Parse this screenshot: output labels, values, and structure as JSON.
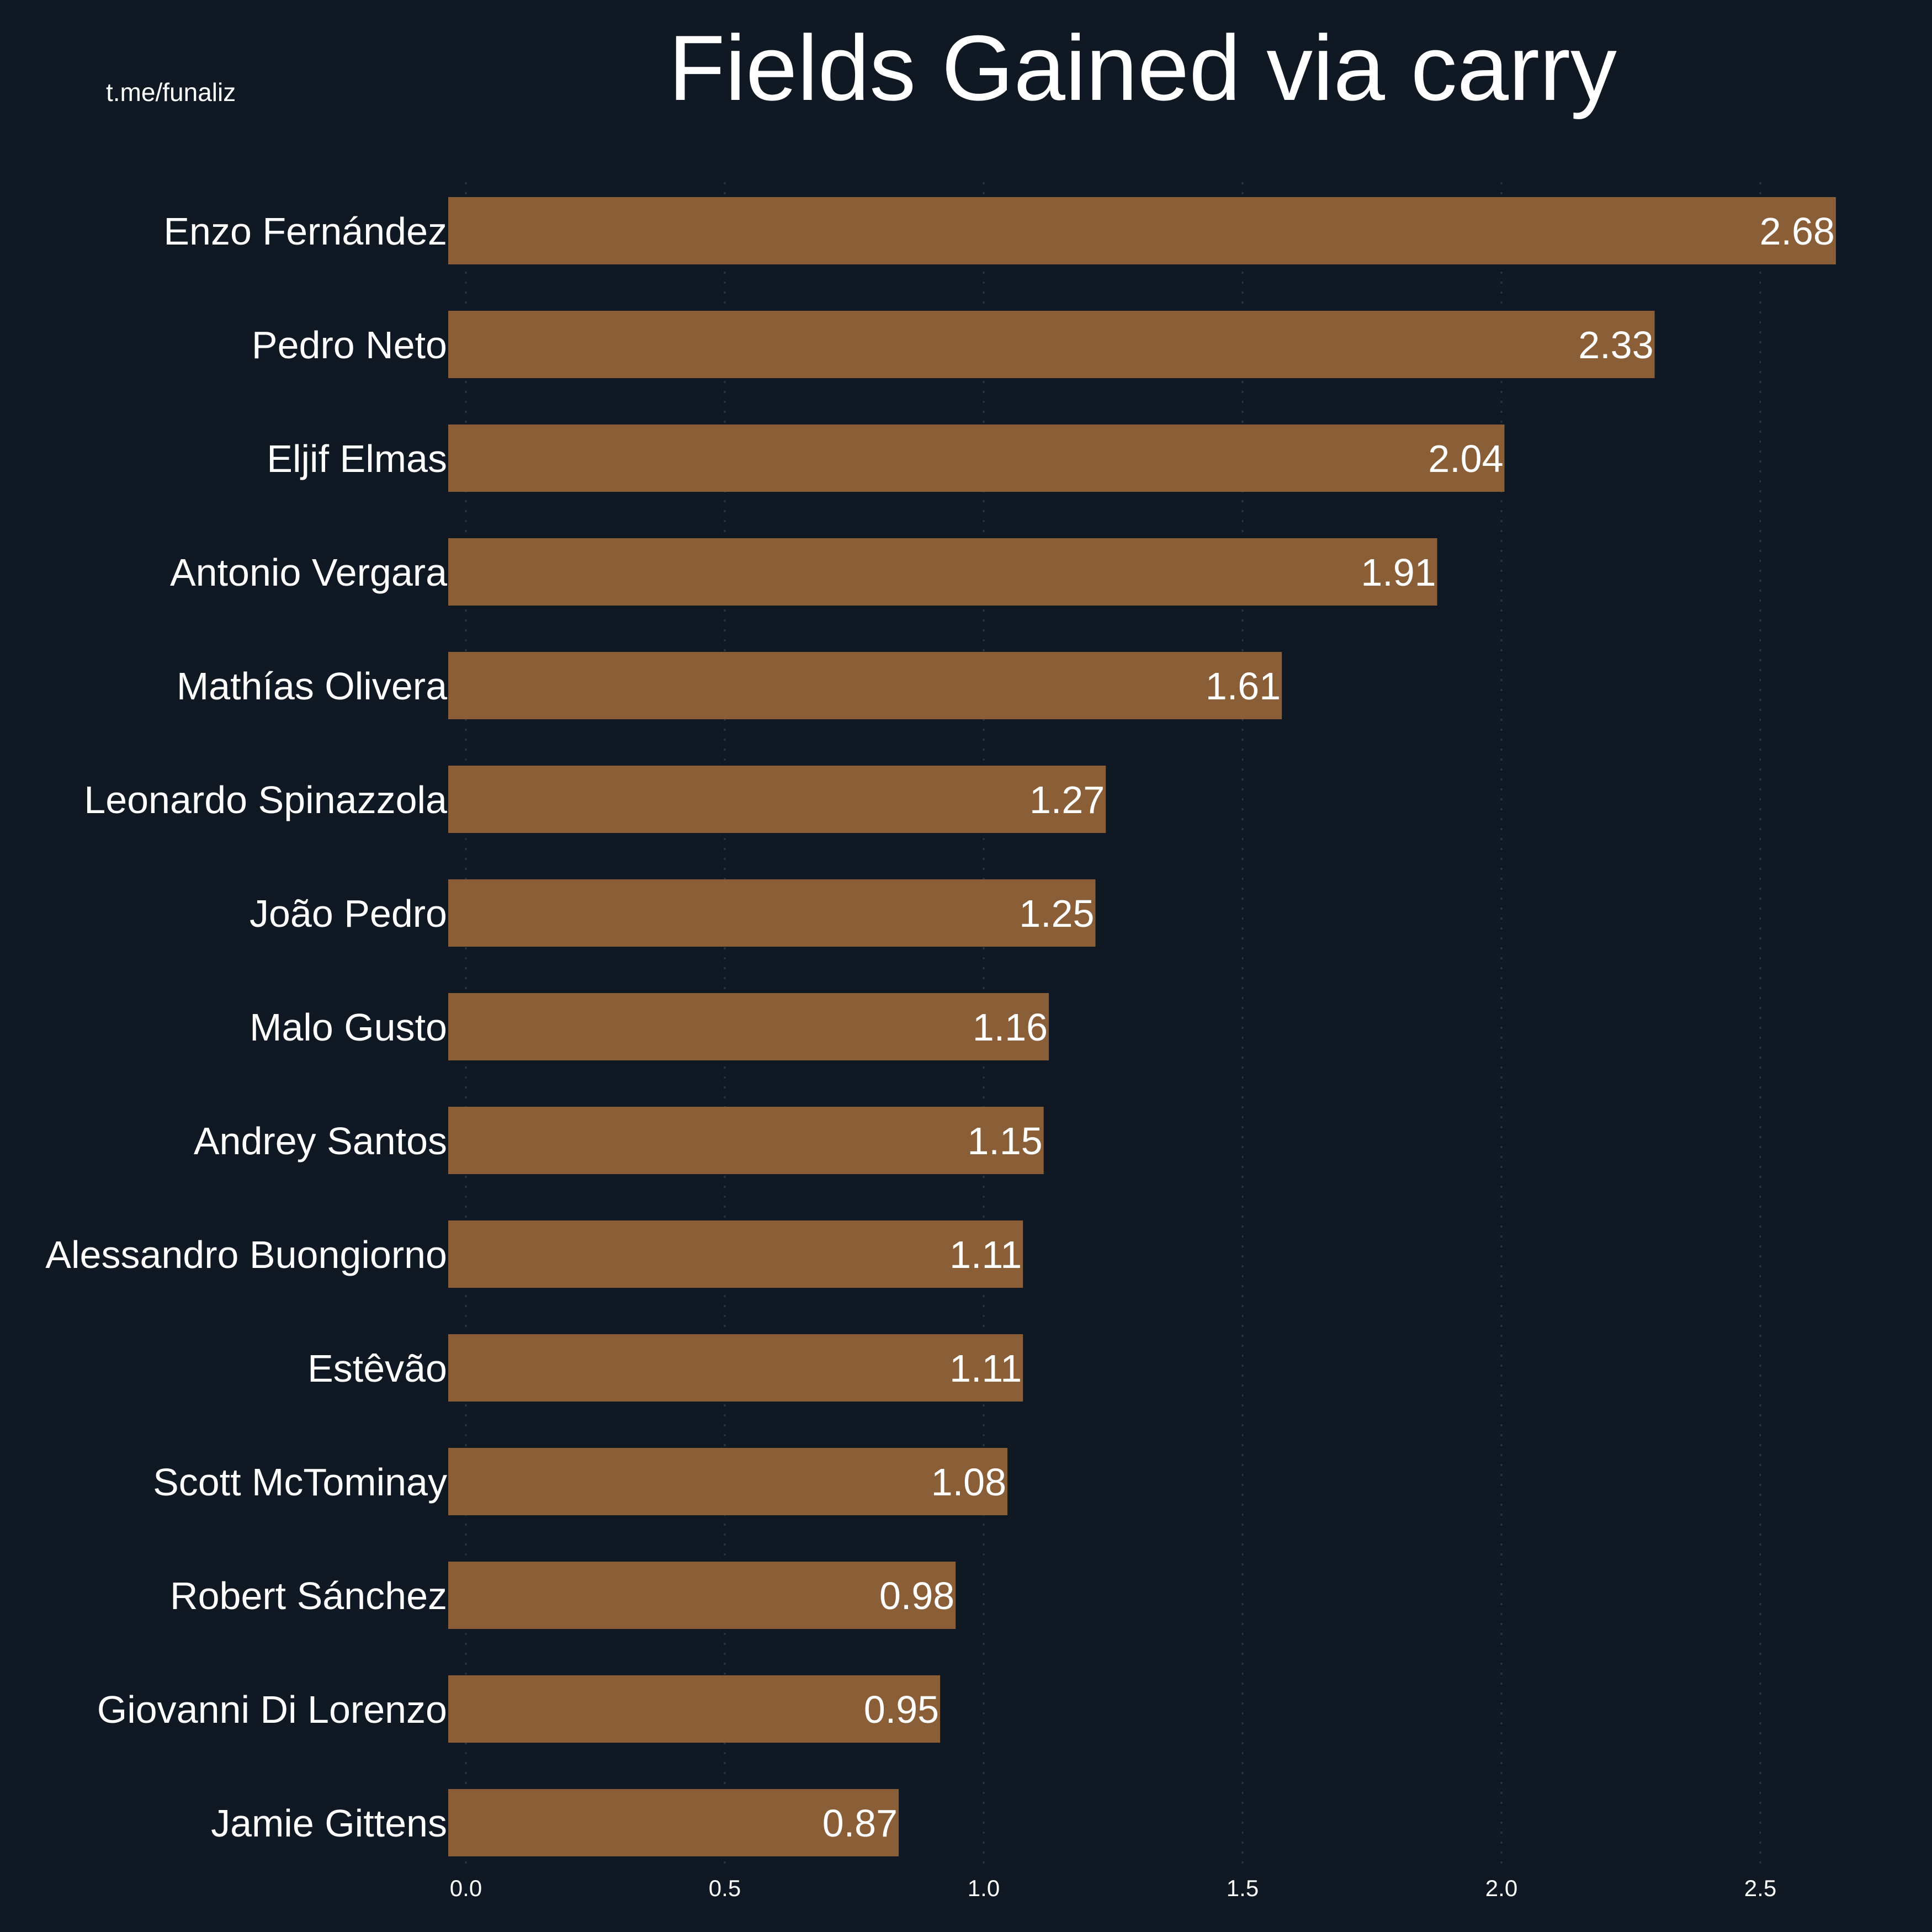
{
  "watermark": "t.me/funaliz",
  "chart_data": {
    "type": "bar",
    "orientation": "horizontal",
    "title": "Fields Gained via carry",
    "xlabel": "",
    "ylabel": "",
    "xlim": [
      0,
      2.8
    ],
    "grid": true,
    "bar_color": "#8a5f38",
    "background_color": "#101923",
    "xticks": [
      "0.0",
      "0.5",
      "1.0",
      "1.5",
      "2.0",
      "2.5"
    ],
    "xtick_values": [
      0,
      0.5,
      1.0,
      1.5,
      2.0,
      2.5
    ],
    "categories": [
      "Enzo Fernández",
      "Pedro Neto",
      "Eljif Elmas",
      "Antonio Vergara",
      "Mathías Olivera",
      "Leonardo Spinazzola",
      "João Pedro",
      "Malo Gusto",
      "Andrey Santos",
      "Alessandro Buongiorno",
      "Estêvão",
      "Scott McTominay",
      "Robert Sánchez",
      "Giovanni Di Lorenzo",
      "Jamie Gittens"
    ],
    "values": [
      2.68,
      2.33,
      2.04,
      1.91,
      1.61,
      1.27,
      1.25,
      1.16,
      1.15,
      1.11,
      1.11,
      1.08,
      0.98,
      0.95,
      0.87
    ],
    "value_labels": [
      "2.68",
      "2.33",
      "2.04",
      "1.91",
      "1.61",
      "1.27",
      "1.25",
      "1.16",
      "1.15",
      "1.11",
      "1.11",
      "1.08",
      "0.98",
      "0.95",
      "0.87"
    ]
  }
}
